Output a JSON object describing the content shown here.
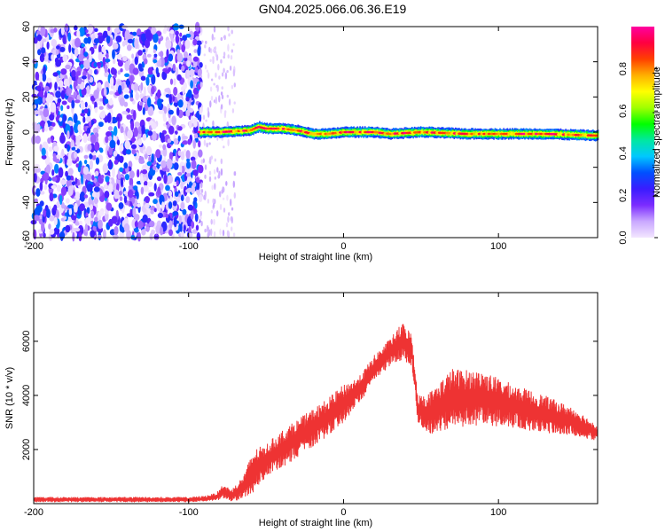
{
  "title": "GN04.2025.066.06.36.E19",
  "chart_data": [
    {
      "type": "heatmap",
      "title": "GN04.2025.066.06.36.E19",
      "xlabel": "Height of straight line (km)",
      "ylabel": "Frequency (Hz)",
      "xlim": [
        -200,
        164
      ],
      "ylim": [
        -60,
        60
      ],
      "xticks": [
        -200,
        -100,
        0,
        100
      ],
      "yticks": [
        -60,
        -40,
        -20,
        0,
        20,
        40,
        60
      ],
      "colorbar": {
        "label": "Normalized spectral amplitude",
        "range": [
          0,
          1
        ],
        "ticks": [
          0.0,
          0.2,
          0.4,
          0.6,
          0.8
        ],
        "colors": [
          "#f3e6ff",
          "#c9a8ff",
          "#7b2cff",
          "#3a1cff",
          "#0050ff",
          "#00c8ff",
          "#00e8a0",
          "#00ff00",
          "#a0ff00",
          "#ffff00",
          "#ffb000",
          "#ff4000",
          "#ff0040",
          "#ff00a0"
        ]
      },
      "regions": [
        {
          "name": "noise",
          "x": [
            -200,
            -92
          ],
          "f": [
            -60,
            60
          ],
          "amplitude": [
            0.0,
            0.35
          ]
        },
        {
          "name": "sparse-noise",
          "x": [
            -92,
            -70
          ],
          "f": [
            -60,
            60
          ],
          "amplitude": [
            0.0,
            0.1
          ]
        },
        {
          "name": "carrier",
          "x": [
            -93,
            164
          ],
          "f_center": [
            0,
            1,
            2,
            1,
            0,
            -1
          ],
          "amplitude": [
            0.3,
            1.0
          ]
        }
      ],
      "carrier_track": {
        "x": [
          -93,
          -80,
          -60,
          -55,
          -50,
          -40,
          -30,
          -20,
          -10,
          0,
          10,
          20,
          30,
          50,
          80,
          100,
          130,
          164
        ],
        "f": [
          0,
          0,
          1,
          3,
          2,
          2,
          1,
          -1,
          -1,
          0,
          0,
          0,
          -1,
          0,
          -1,
          -1,
          -1,
          -2
        ]
      }
    },
    {
      "type": "line",
      "xlabel": "Height of straight line (km)",
      "ylabel": "SNR (10 * v/v)",
      "xlim": [
        -200,
        164
      ],
      "ylim": [
        0,
        7800
      ],
      "xticks": [
        -200,
        -100,
        0,
        100
      ],
      "yticks": [
        2000,
        4000,
        6000
      ],
      "color": "#ee3333",
      "envelope": {
        "x": [
          -200,
          -150,
          -100,
          -90,
          -82,
          -78,
          -72,
          -65,
          -58,
          -50,
          -40,
          -30,
          -20,
          -10,
          0,
          10,
          20,
          30,
          38,
          44,
          48,
          55,
          70,
          90,
          110,
          130,
          150,
          164
        ],
        "mean": [
          150,
          150,
          150,
          180,
          250,
          450,
          300,
          600,
          1200,
          1600,
          2000,
          2400,
          2800,
          3200,
          3700,
          4200,
          5000,
          5600,
          6000,
          5700,
          3500,
          3300,
          3900,
          3900,
          3600,
          3300,
          3000,
          2600
        ],
        "noise": [
          100,
          100,
          100,
          110,
          150,
          250,
          250,
          400,
          800,
          600,
          700,
          700,
          700,
          700,
          700,
          500,
          500,
          500,
          700,
          600,
          500,
          800,
          1100,
          1000,
          800,
          700,
          500,
          300
        ]
      }
    }
  ]
}
